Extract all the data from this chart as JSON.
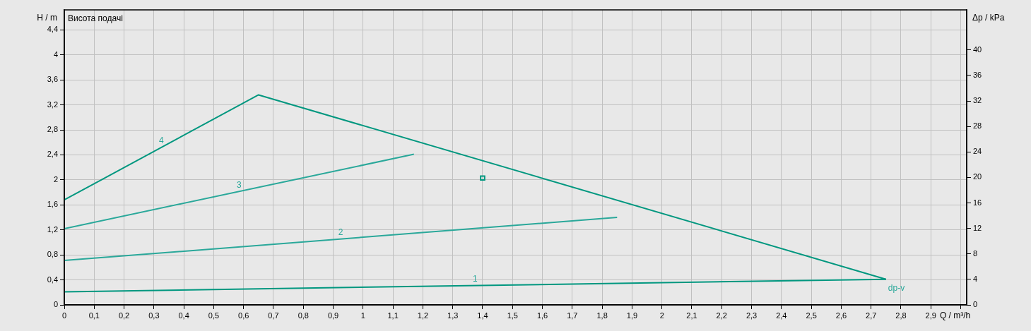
{
  "chart_data": {
    "type": "line",
    "title": "Висота подачі",
    "xlabel": "Q / m³/h",
    "ylabel": "H / m",
    "y2label": "Δp / kPa",
    "grid": true,
    "legend": false,
    "marker": "square",
    "xlim": [
      0,
      3.02
    ],
    "ylim": [
      0,
      4.72
    ],
    "y2lim": [
      0,
      46.3
    ],
    "xticks": [
      0,
      {
        "value": 0.1,
        "label": "0,1"
      },
      {
        "value": 0.2,
        "label": "0,2"
      },
      {
        "value": 0.3,
        "label": "0,3"
      },
      {
        "value": 0.4,
        "label": "0,4"
      },
      {
        "value": 0.5,
        "label": "0,5"
      },
      {
        "value": 0.6,
        "label": "0,6"
      },
      {
        "value": 0.7,
        "label": "0,7"
      },
      {
        "value": 0.8,
        "label": "0,8"
      },
      {
        "value": 0.9,
        "label": "0,9"
      },
      1,
      {
        "value": 1.1,
        "label": "1,1"
      },
      {
        "value": 1.2,
        "label": "1,2"
      },
      {
        "value": 1.3,
        "label": "1,3"
      },
      {
        "value": 1.4,
        "label": "1,4"
      },
      {
        "value": 1.5,
        "label": "1,5"
      },
      {
        "value": 1.6,
        "label": "1,6"
      },
      {
        "value": 1.7,
        "label": "1,7"
      },
      {
        "value": 1.8,
        "label": "1,8"
      },
      {
        "value": 1.9,
        "label": "1,9"
      },
      2,
      {
        "value": 2.1,
        "label": "2,1"
      },
      {
        "value": 2.2,
        "label": "2,2"
      },
      {
        "value": 2.3,
        "label": "2,3"
      },
      {
        "value": 2.4,
        "label": "2,4"
      },
      {
        "value": 2.5,
        "label": "2,5"
      },
      {
        "value": 2.6,
        "label": "2,6"
      },
      {
        "value": 2.7,
        "label": "2,7"
      },
      {
        "value": 2.8,
        "label": "2,8"
      },
      {
        "value": 2.9,
        "label": "2,9"
      },
      {
        "value": 3,
        "label": null
      }
    ],
    "yticks": [
      0,
      {
        "value": 0.4,
        "label": "0,4"
      },
      {
        "value": 0.8,
        "label": "0,8"
      },
      {
        "value": 1.2,
        "label": "1,2"
      },
      {
        "value": 1.6,
        "label": "1,6"
      },
      2,
      {
        "value": 2.4,
        "label": "2,4"
      },
      {
        "value": 2.8,
        "label": "2,8"
      },
      {
        "value": 3.2,
        "label": "3,2"
      },
      {
        "value": 3.6,
        "label": "3,6"
      },
      4,
      {
        "value": 4.4,
        "label": "4,4"
      }
    ],
    "y2ticks": [
      0,
      4,
      8,
      12,
      16,
      20,
      24,
      28,
      32,
      36,
      40
    ],
    "series": [
      {
        "name": "1",
        "marker": "none",
        "color": "#00977f",
        "x": [
          0,
          2.75
        ],
        "values": [
          0.21,
          0.41
        ]
      },
      {
        "name": "2",
        "marker": "none",
        "color": "#2aa89a",
        "x": [
          0,
          1.85
        ],
        "values": [
          0.71,
          1.4
        ]
      },
      {
        "name": "3",
        "marker": "none",
        "color": "#2aa89a",
        "x": [
          0,
          1.17
        ],
        "values": [
          1.22,
          2.41
        ]
      },
      {
        "name": "4",
        "marker": "none",
        "color": "#00977f",
        "x": [
          0,
          0.65,
          2.75
        ],
        "values": [
          1.68,
          3.36,
          0.41
        ]
      },
      {
        "type": "scatter",
        "color": "#00977f",
        "x": [
          1.4
        ],
        "values": [
          2.03
        ]
      }
    ],
    "annotations": [
      "dp-v"
    ]
  }
}
